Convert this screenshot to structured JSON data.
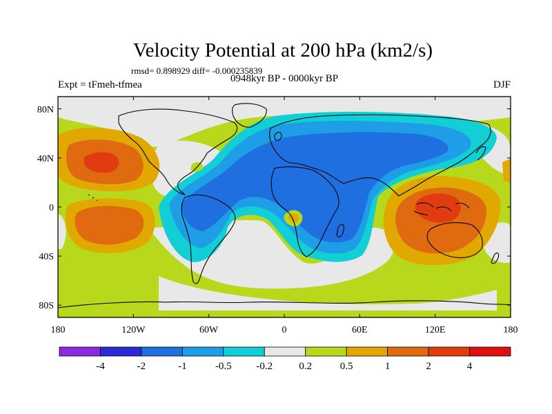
{
  "chart_data": {
    "type": "filled-contour-map",
    "title": "Velocity Potential at 200 hPa (km2/s)",
    "stats_text": "rmsd= 0.898929 diff= -0.000235839",
    "left_label": "Expt = tFmeh-tfmea",
    "center_label": "0948kyr BP - 0000kyr BP",
    "right_label": "DJF",
    "projection": "cylindrical equidistant",
    "xlim": [
      -180,
      180
    ],
    "ylim": [
      -90,
      90
    ],
    "x_ticks": [
      {
        "value": -180,
        "label": "180"
      },
      {
        "value": -120,
        "label": "120W"
      },
      {
        "value": -60,
        "label": "60W"
      },
      {
        "value": 0,
        "label": "0"
      },
      {
        "value": 60,
        "label": "60E"
      },
      {
        "value": 120,
        "label": "120E"
      },
      {
        "value": 180,
        "label": "180"
      }
    ],
    "y_ticks": [
      {
        "value": 80,
        "label": "80N"
      },
      {
        "value": 40,
        "label": "40N"
      },
      {
        "value": 0,
        "label": "0"
      },
      {
        "value": -40,
        "label": "40S"
      },
      {
        "value": -80,
        "label": "80S"
      }
    ],
    "contour_levels": [
      "-4",
      "-2",
      "-1",
      "-0.5",
      "-0.2",
      "0.2",
      "0.5",
      "1",
      "2",
      "4"
    ],
    "colors": [
      "#8a2be2",
      "#2b2bd6",
      "#1f6fe0",
      "#1e9ee6",
      "#12cfd6",
      "#e8e8e8",
      "#b8d81c",
      "#e0a800",
      "#e06a10",
      "#e03c10",
      "#e01010"
    ],
    "land_color": "#ffffff",
    "ocean_color": "#ffffff"
  }
}
